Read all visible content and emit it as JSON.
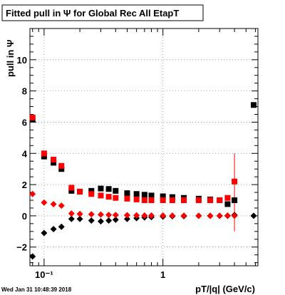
{
  "timestamp": "Wed Jan 31 10:48:39 2018",
  "chart_data": {
    "type": "scatter",
    "title": "Fitted pull in  Ψ  for Global Rec All EtapT",
    "xlabel": "pT/|q| (GeV/c)",
    "ylabel": "pull in  Ψ",
    "xscale": "log",
    "xlim": [
      0.076,
      6.3
    ],
    "ylim": [
      -3.2,
      12
    ],
    "x_tick_labels": [
      {
        "value": 0.1,
        "label": "10⁻¹"
      },
      {
        "value": 1,
        "label": "1"
      }
    ],
    "y_ticks": [
      -2,
      0,
      2,
      4,
      6,
      8,
      10
    ],
    "grid": true,
    "colors": {
      "black": "#000000",
      "red": "#ff0000"
    },
    "series": [
      {
        "marker": "square",
        "color": "#000000",
        "x": [
          0.08,
          0.1,
          0.12,
          0.14,
          0.17,
          0.2,
          0.25,
          0.3,
          0.35,
          0.4,
          0.5,
          0.6,
          0.7,
          0.8,
          1.0,
          1.2,
          1.5,
          2.0,
          2.5,
          3.0,
          3.5,
          4.0,
          5.8
        ],
        "y": [
          6.2,
          3.8,
          3.4,
          3.0,
          1.6,
          1.55,
          1.6,
          1.75,
          1.72,
          1.6,
          1.45,
          1.4,
          1.35,
          1.3,
          1.25,
          1.2,
          1.15,
          1.1,
          1.05,
          1.0,
          0.75,
          1.0,
          7.1
        ]
      },
      {
        "marker": "square",
        "color": "#ff0000",
        "x": [
          0.08,
          0.1,
          0.12,
          0.14,
          0.17,
          0.2,
          0.25,
          0.3,
          0.35,
          0.4,
          0.5,
          0.6,
          0.7,
          0.8,
          1.0,
          1.2,
          1.5,
          2.0,
          2.5,
          3.0,
          3.5,
          4.0
        ],
        "y": [
          6.3,
          4.0,
          3.6,
          3.2,
          1.8,
          1.55,
          1.4,
          1.3,
          1.22,
          1.15,
          1.1,
          1.05,
          1.0,
          1.0,
          1.0,
          1.0,
          1.0,
          1.0,
          1.0,
          1.0,
          1.15,
          2.2
        ]
      },
      {
        "marker": "diamond",
        "color": "#000000",
        "x": [
          0.08,
          0.1,
          0.12,
          0.14,
          0.17,
          0.2,
          0.25,
          0.3,
          0.35,
          0.4,
          0.5,
          0.6,
          0.7,
          0.8,
          1.0,
          1.2,
          1.5,
          2.0,
          2.5,
          3.0,
          3.5,
          4.0,
          5.8
        ],
        "y": [
          -2.6,
          -1.1,
          -0.85,
          -0.7,
          -0.2,
          -0.2,
          -0.3,
          -0.35,
          -0.3,
          -0.25,
          -0.2,
          -0.15,
          -0.1,
          -0.08,
          -0.05,
          -0.03,
          -0.02,
          0.0,
          0.0,
          0.0,
          0.0,
          0.05,
          0.0
        ]
      },
      {
        "marker": "diamond",
        "color": "#ff0000",
        "x": [
          0.08,
          0.1,
          0.12,
          0.14,
          0.17,
          0.2,
          0.25,
          0.3,
          0.35,
          0.4,
          0.5,
          0.6,
          0.7,
          0.8,
          1.0,
          1.2,
          1.5,
          2.0,
          2.5,
          3.0,
          3.5,
          4.0
        ],
        "y": [
          1.4,
          0.85,
          0.75,
          0.65,
          0.15,
          0.12,
          0.1,
          0.08,
          0.06,
          0.05,
          0.04,
          0.03,
          0.02,
          0.02,
          0.02,
          0.01,
          0.01,
          0.0,
          0.0,
          0.0,
          0.02,
          0.0
        ],
        "error_bar": {
          "x": 4.0,
          "low": -1.0,
          "high": 4.0
        }
      }
    ]
  }
}
